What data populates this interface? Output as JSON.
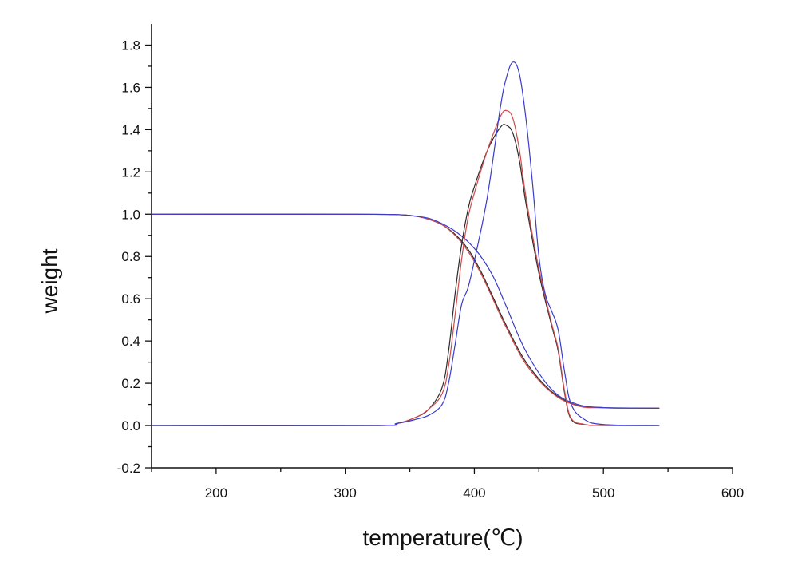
{
  "chart_data": {
    "type": "line",
    "title": "",
    "xlabel": "temperature(℃)",
    "ylabel": "weight",
    "xlim": [
      150,
      600
    ],
    "ylim": [
      -0.2,
      1.9
    ],
    "grid": false,
    "legend": "none",
    "x_ticks": [
      200,
      300,
      400,
      500,
      600
    ],
    "y_ticks": [
      -0.2,
      0.0,
      0.2,
      0.4,
      0.6,
      0.8,
      1.0,
      1.2,
      1.4,
      1.6,
      1.8
    ],
    "x_tick_labels": [
      "200",
      "300",
      "400",
      "500",
      "600"
    ],
    "y_tick_labels": [
      "-0.2",
      "0.0",
      "0.2",
      "0.4",
      "0.6",
      "0.8",
      "1.0",
      "1.2",
      "1.4",
      "1.6",
      "1.8"
    ],
    "series": [
      {
        "color": "#2b2b2b",
        "x": [
          150,
          300,
          340,
          355,
          365,
          375,
          385,
          395,
          405,
          415,
          425,
          440,
          460,
          480,
          500,
          520,
          543
        ],
        "y": [
          1.0,
          1.0,
          0.998,
          0.99,
          0.975,
          0.95,
          0.905,
          0.835,
          0.73,
          0.6,
          0.47,
          0.3,
          0.16,
          0.095,
          0.085,
          0.083,
          0.082
        ]
      },
      {
        "color": "#d04a4a",
        "x": [
          150,
          300,
          340,
          355,
          365,
          375,
          385,
          395,
          405,
          415,
          425,
          440,
          460,
          480,
          500,
          520,
          543
        ],
        "y": [
          1.0,
          1.0,
          0.998,
          0.99,
          0.975,
          0.95,
          0.9,
          0.825,
          0.72,
          0.59,
          0.46,
          0.29,
          0.155,
          0.093,
          0.084,
          0.082,
          0.082
        ]
      },
      {
        "color": "#3a3acc",
        "x": [
          150,
          300,
          340,
          355,
          365,
          375,
          385,
          395,
          405,
          415,
          425,
          440,
          460,
          480,
          500,
          520,
          543
        ],
        "y": [
          1.0,
          1.0,
          0.998,
          0.99,
          0.98,
          0.955,
          0.92,
          0.87,
          0.8,
          0.7,
          0.56,
          0.35,
          0.17,
          0.1,
          0.085,
          0.083,
          0.082
        ]
      },
      {
        "color": "#2b2b2b",
        "x": [
          150,
          320,
          340,
          355,
          365,
          375,
          380,
          385,
          390,
          395,
          400,
          410,
          420,
          425,
          430,
          435,
          440,
          450,
          460,
          465,
          470,
          475,
          485,
          500,
          543
        ],
        "y": [
          0.0,
          0.0,
          0.01,
          0.04,
          0.08,
          0.18,
          0.35,
          0.62,
          0.85,
          1.02,
          1.13,
          1.3,
          1.41,
          1.42,
          1.38,
          1.25,
          1.05,
          0.72,
          0.47,
          0.35,
          0.15,
          0.03,
          0.005,
          0.0,
          0.0
        ]
      },
      {
        "color": "#d04a4a",
        "x": [
          150,
          320,
          340,
          355,
          365,
          375,
          380,
          385,
          390,
          395,
          400,
          410,
          420,
          425,
          430,
          435,
          440,
          450,
          460,
          465,
          470,
          475,
          485,
          500,
          543
        ],
        "y": [
          0.0,
          0.0,
          0.01,
          0.04,
          0.08,
          0.15,
          0.28,
          0.52,
          0.78,
          0.98,
          1.1,
          1.3,
          1.46,
          1.49,
          1.45,
          1.3,
          1.08,
          0.74,
          0.48,
          0.36,
          0.16,
          0.035,
          0.006,
          0.0,
          0.0
        ]
      },
      {
        "color": "#3a3acc",
        "x": [
          150,
          320,
          340,
          355,
          365,
          375,
          380,
          385,
          390,
          395,
          400,
          410,
          420,
          425,
          430,
          435,
          440,
          445,
          450,
          455,
          460,
          465,
          470,
          475,
          485,
          500,
          543
        ],
        "y": [
          0.0,
          0.0,
          0.01,
          0.03,
          0.05,
          0.1,
          0.2,
          0.38,
          0.57,
          0.65,
          0.78,
          1.08,
          1.5,
          1.65,
          1.72,
          1.66,
          1.45,
          1.15,
          0.8,
          0.62,
          0.54,
          0.45,
          0.25,
          0.1,
          0.03,
          0.005,
          0.0
        ]
      }
    ]
  }
}
